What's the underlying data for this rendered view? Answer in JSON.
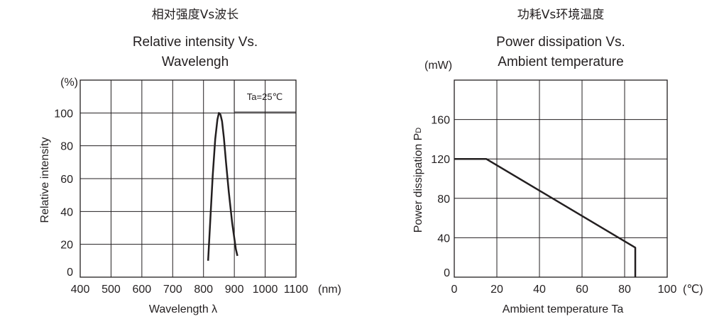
{
  "chart_data": [
    {
      "type": "line",
      "title_cn": "相对强度Vs波长",
      "title_en_1": "Relative intensity Vs.",
      "title_en_2": "Wavelengh",
      "xlabel": "Wavelength  λ",
      "x_unit": "(nm)",
      "ylabel": "Relative intensity",
      "y_unit": "(%)",
      "annotation": "Ta=25℃",
      "x_ticks": [
        "400",
        "500",
        "600",
        "700",
        "800",
        "900",
        "1000",
        "1100"
      ],
      "y_ticks": [
        "0",
        "20",
        "40",
        "60",
        "80",
        "100"
      ],
      "xlim": [
        400,
        1100
      ],
      "ylim": [
        0,
        120
      ],
      "grid": true,
      "series": [
        {
          "name": "Relative intensity",
          "x": [
            815,
            822,
            830,
            838,
            845,
            850,
            855,
            860,
            866,
            873,
            882,
            893,
            905,
            910
          ],
          "y": [
            10,
            35,
            62,
            84,
            96,
            100,
            99,
            95,
            85,
            70,
            52,
            33,
            17,
            13
          ]
        }
      ]
    },
    {
      "type": "line",
      "title_cn": "功耗Vs环境温度",
      "title_en_1": "Power dissipation Vs.",
      "title_en_2": "Ambient temperature",
      "xlabel": "Ambient temperature Ta",
      "x_unit": "(℃)",
      "ylabel_main": "Power dissipation P",
      "ylabel_sub": "D",
      "y_unit": "(mW)",
      "x_ticks": [
        "0",
        "20",
        "40",
        "60",
        "80",
        "100"
      ],
      "y_ticks": [
        "0",
        "40",
        "80",
        "120",
        "160"
      ],
      "xlim": [
        0,
        100
      ],
      "ylim": [
        0,
        200
      ],
      "grid": true,
      "series": [
        {
          "name": "Power dissipation",
          "x": [
            0,
            15,
            85,
            85
          ],
          "y": [
            120,
            120,
            30,
            0
          ]
        }
      ]
    }
  ]
}
